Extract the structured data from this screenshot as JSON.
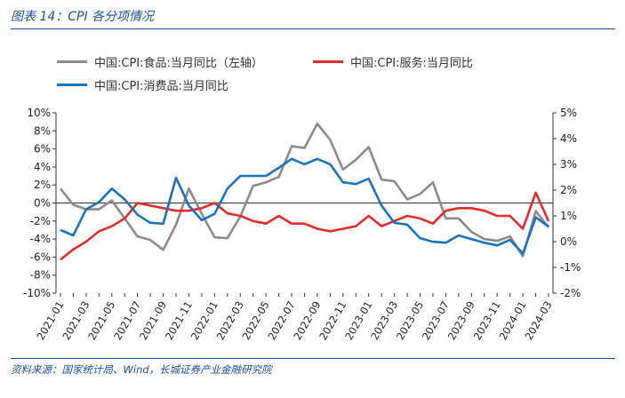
{
  "header": {
    "figure_title": "图表 14：CPI 各分项情况"
  },
  "footer": {
    "source": "资料来源：国家统计局、Wind，长城证券产业金融研究院"
  },
  "chart_data": {
    "type": "line",
    "x": [
      "2021-01",
      "2021-02",
      "2021-03",
      "2021-04",
      "2021-05",
      "2021-06",
      "2021-07",
      "2021-08",
      "2021-09",
      "2021-10",
      "2021-11",
      "2021-12",
      "2022-01",
      "2022-02",
      "2022-03",
      "2022-04",
      "2022-05",
      "2022-06",
      "2022-07",
      "2022-08",
      "2022-09",
      "2022-10",
      "2022-11",
      "2022-12",
      "2023-01",
      "2023-02",
      "2023-03",
      "2023-04",
      "2023-05",
      "2023-06",
      "2023-07",
      "2023-08",
      "2023-09",
      "2023-10",
      "2023-11",
      "2023-12",
      "2024-01",
      "2024-02",
      "2024-03"
    ],
    "x_tick_labels": [
      "2021-01",
      "2021-03",
      "2021-05",
      "2021-07",
      "2021-09",
      "2021-11",
      "2022-01",
      "2022-03",
      "2022-05",
      "2022-07",
      "2022-09",
      "2022-11",
      "2023-01",
      "2023-03",
      "2023-05",
      "2023-07",
      "2023-09",
      "2023-11",
      "2024-01",
      "2024-03"
    ],
    "y_left": {
      "ylim": [
        -10,
        10
      ],
      "ticks": [
        "10%",
        "8%",
        "6%",
        "4%",
        "2%",
        "0%",
        "-2%",
        "-4%",
        "-6%",
        "-8%",
        "-10%"
      ]
    },
    "y_right": {
      "ylim": [
        -2,
        5
      ],
      "ticks": [
        "5%",
        "4%",
        "3%",
        "2%",
        "1%",
        "0%",
        "-1%",
        "-2%"
      ]
    },
    "grid": false,
    "legend_position": "top",
    "series": [
      {
        "name": "中国:CPI:食品:当月同比（左轴）",
        "axis": "left",
        "color": "#8c8c8c",
        "values": [
          1.6,
          -0.2,
          -0.7,
          -0.7,
          0.3,
          -1.7,
          -3.7,
          -4.1,
          -5.2,
          -2.4,
          1.6,
          -1.2,
          -3.8,
          -3.9,
          -1.5,
          1.9,
          2.3,
          2.9,
          6.3,
          6.1,
          8.8,
          7.0,
          3.7,
          4.8,
          6.2,
          2.6,
          2.4,
          0.4,
          1.0,
          2.3,
          -1.7,
          -1.7,
          -3.2,
          -4.0,
          -4.2,
          -3.7,
          -5.9,
          -0.9,
          -2.7
        ]
      },
      {
        "name": "中国:CPI:服务:当月同比",
        "axis": "right",
        "color": "#e32b2b",
        "values": [
          -0.7,
          -0.3,
          0.0,
          0.4,
          0.6,
          0.9,
          1.5,
          1.4,
          1.3,
          1.2,
          1.2,
          1.3,
          1.5,
          1.1,
          1.0,
          0.8,
          0.7,
          1.0,
          0.7,
          0.7,
          0.5,
          0.4,
          0.5,
          0.6,
          1.0,
          0.6,
          0.8,
          1.0,
          0.9,
          0.7,
          1.2,
          1.3,
          1.3,
          1.2,
          1.0,
          1.0,
          0.5,
          1.9,
          0.8
        ]
      },
      {
        "name": "中国:CPI:消费品:当月同比",
        "axis": "left",
        "color": "#1b72c0",
        "values": [
          -3.0,
          -3.6,
          -0.7,
          0.1,
          1.6,
          0.4,
          -1.3,
          -2.2,
          -2.3,
          2.8,
          -0.3,
          -1.9,
          -1.2,
          1.6,
          3.0,
          3.0,
          3.0,
          3.9,
          4.9,
          4.3,
          4.9,
          4.3,
          2.3,
          2.1,
          2.7,
          -0.3,
          -2.2,
          -2.4,
          -3.9,
          -4.3,
          -4.4,
          -3.6,
          -4.0,
          -4.4,
          -4.7,
          -4.1,
          -5.6,
          -1.6,
          -2.6
        ]
      }
    ]
  }
}
